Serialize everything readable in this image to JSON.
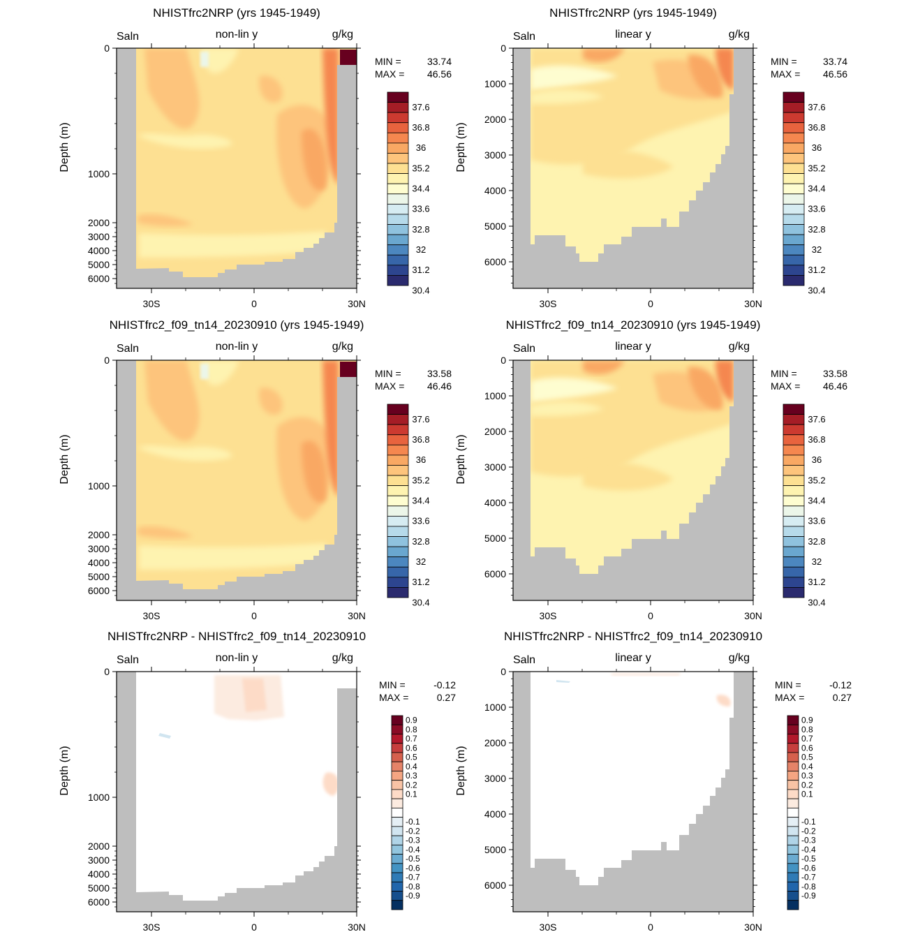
{
  "chart_data": [
    {
      "type": "heatmap",
      "title": "NHISTfrc2NRP (yrs 1945-1949)",
      "left_label": "Saln",
      "center_label": "non-lin y",
      "right_label": "g/kg",
      "ylabel": "Depth (m)",
      "x_ticks": [
        "30S",
        "0",
        "30N"
      ],
      "y_ticks": [
        "0",
        "1000",
        "2000",
        "3000",
        "4000",
        "5000",
        "6000"
      ],
      "stats": {
        "min_label": "MIN =",
        "min": "33.74",
        "max_label": "MAX =",
        "max": "46.56"
      },
      "colorbar_labels": [
        "37.6",
        "36.8",
        "36",
        "35.2",
        "34.4",
        "33.6",
        "32.8",
        "32",
        "31.2",
        "30.4"
      ],
      "colorbar_colors": [
        "#67001f",
        "#a51d26",
        "#cc3a30",
        "#e8633e",
        "#f5874f",
        "#f9a863",
        "#fdc47c",
        "#fde092",
        "#fef3b0",
        "#fefdd0",
        "#ecf6e9",
        "#d6ecf2",
        "#b6daea",
        "#8fc2de",
        "#6aa7cf",
        "#4c87bf",
        "#3766a9",
        "#2d458f",
        "#2a2a6e"
      ]
    },
    {
      "type": "heatmap",
      "title": "NHISTfrc2NRP (yrs 1945-1949)",
      "left_label": "Saln",
      "center_label": "linear y",
      "right_label": "g/kg",
      "ylabel": "Depth (m)",
      "x_ticks": [
        "30S",
        "0",
        "30N"
      ],
      "y_ticks": [
        "0",
        "1000",
        "2000",
        "3000",
        "4000",
        "5000",
        "6000"
      ],
      "stats": {
        "min_label": "MIN =",
        "min": "33.74",
        "max_label": "MAX =",
        "max": "46.56"
      },
      "colorbar_labels": [
        "37.6",
        "36.8",
        "36",
        "35.2",
        "34.4",
        "33.6",
        "32.8",
        "32",
        "31.2",
        "30.4"
      ],
      "colorbar_colors": [
        "#67001f",
        "#a51d26",
        "#cc3a30",
        "#e8633e",
        "#f5874f",
        "#f9a863",
        "#fdc47c",
        "#fde092",
        "#fef3b0",
        "#fefdd0",
        "#ecf6e9",
        "#d6ecf2",
        "#b6daea",
        "#8fc2de",
        "#6aa7cf",
        "#4c87bf",
        "#3766a9",
        "#2d458f",
        "#2a2a6e"
      ]
    },
    {
      "type": "heatmap",
      "title": "NHISTfrc2_f09_tn14_20230910 (yrs 1945-1949)",
      "left_label": "Saln",
      "center_label": "non-lin y",
      "right_label": "g/kg",
      "ylabel": "Depth (m)",
      "x_ticks": [
        "30S",
        "0",
        "30N"
      ],
      "y_ticks": [
        "0",
        "1000",
        "2000",
        "3000",
        "4000",
        "5000",
        "6000"
      ],
      "stats": {
        "min_label": "MIN =",
        "min": "33.58",
        "max_label": "MAX =",
        "max": "46.46"
      },
      "colorbar_labels": [
        "37.6",
        "36.8",
        "36",
        "35.2",
        "34.4",
        "33.6",
        "32.8",
        "32",
        "31.2",
        "30.4"
      ],
      "colorbar_colors": [
        "#67001f",
        "#a51d26",
        "#cc3a30",
        "#e8633e",
        "#f5874f",
        "#f9a863",
        "#fdc47c",
        "#fde092",
        "#fef3b0",
        "#fefdd0",
        "#ecf6e9",
        "#d6ecf2",
        "#b6daea",
        "#8fc2de",
        "#6aa7cf",
        "#4c87bf",
        "#3766a9",
        "#2d458f",
        "#2a2a6e"
      ]
    },
    {
      "type": "heatmap",
      "title": "NHISTfrc2_f09_tn14_20230910 (yrs 1945-1949)",
      "left_label": "Saln",
      "center_label": "linear y",
      "right_label": "g/kg",
      "ylabel": "Depth (m)",
      "x_ticks": [
        "30S",
        "0",
        "30N"
      ],
      "y_ticks": [
        "0",
        "1000",
        "2000",
        "3000",
        "4000",
        "5000",
        "6000"
      ],
      "stats": {
        "min_label": "MIN =",
        "min": "33.58",
        "max_label": "MAX =",
        "max": "46.46"
      },
      "colorbar_labels": [
        "37.6",
        "36.8",
        "36",
        "35.2",
        "34.4",
        "33.6",
        "32.8",
        "32",
        "31.2",
        "30.4"
      ],
      "colorbar_colors": [
        "#67001f",
        "#a51d26",
        "#cc3a30",
        "#e8633e",
        "#f5874f",
        "#f9a863",
        "#fdc47c",
        "#fde092",
        "#fef3b0",
        "#fefdd0",
        "#ecf6e9",
        "#d6ecf2",
        "#b6daea",
        "#8fc2de",
        "#6aa7cf",
        "#4c87bf",
        "#3766a9",
        "#2d458f",
        "#2a2a6e"
      ]
    },
    {
      "type": "heatmap",
      "title": "NHISTfrc2NRP - NHISTfrc2_f09_tn14_20230910",
      "left_label": "Saln",
      "center_label": "non-lin y",
      "right_label": "g/kg",
      "ylabel": "Depth (m)",
      "x_ticks": [
        "30S",
        "0",
        "30N"
      ],
      "y_ticks": [
        "0",
        "1000",
        "2000",
        "3000",
        "4000",
        "5000",
        "6000"
      ],
      "stats": {
        "min_label": "MIN =",
        "min": "-0.12",
        "max_label": "MAX =",
        "max": "0.27"
      },
      "colorbar_labels": [
        "0.9",
        "0.8",
        "0.7",
        "0.6",
        "0.5",
        "0.4",
        "0.3",
        "0.2",
        "0.1",
        "-0.1",
        "-0.2",
        "-0.3",
        "-0.4",
        "-0.5",
        "-0.6",
        "-0.7",
        "-0.8",
        "-0.9"
      ],
      "colorbar_colors": [
        "#67001f",
        "#8a0b25",
        "#b2182b",
        "#c73e3d",
        "#d6604d",
        "#e58368",
        "#f4a582",
        "#f8c3a5",
        "#fddbc7",
        "#fcebe0",
        "#ffffff",
        "#e5eff5",
        "#d1e5f0",
        "#b0d4e7",
        "#92c5de",
        "#6aabd1",
        "#4393c3",
        "#2f7bb6",
        "#2166ac",
        "#164f8d",
        "#053061"
      ]
    },
    {
      "type": "heatmap",
      "title": "NHISTfrc2NRP - NHISTfrc2_f09_tn14_20230910",
      "left_label": "Saln",
      "center_label": "linear y",
      "right_label": "g/kg",
      "ylabel": "Depth (m)",
      "x_ticks": [
        "30S",
        "0",
        "30N"
      ],
      "y_ticks": [
        "0",
        "1000",
        "2000",
        "3000",
        "4000",
        "5000",
        "6000"
      ],
      "stats": {
        "min_label": "MIN =",
        "min": "-0.12",
        "max_label": "MAX =",
        "max": "0.27"
      },
      "colorbar_labels": [
        "0.9",
        "0.8",
        "0.7",
        "0.6",
        "0.5",
        "0.4",
        "0.3",
        "0.2",
        "0.1",
        "-0.1",
        "-0.2",
        "-0.3",
        "-0.4",
        "-0.5",
        "-0.6",
        "-0.7",
        "-0.8",
        "-0.9"
      ],
      "colorbar_colors": [
        "#67001f",
        "#8a0b25",
        "#b2182b",
        "#c73e3d",
        "#d6604d",
        "#e58368",
        "#f4a582",
        "#f8c3a5",
        "#fddbc7",
        "#fcebe0",
        "#ffffff",
        "#e5eff5",
        "#d1e5f0",
        "#b0d4e7",
        "#92c5de",
        "#6aabd1",
        "#4393c3",
        "#2f7bb6",
        "#2166ac",
        "#164f8d",
        "#053061"
      ]
    }
  ],
  "colors": {
    "land": "#bebebe",
    "frame": "#000000"
  }
}
